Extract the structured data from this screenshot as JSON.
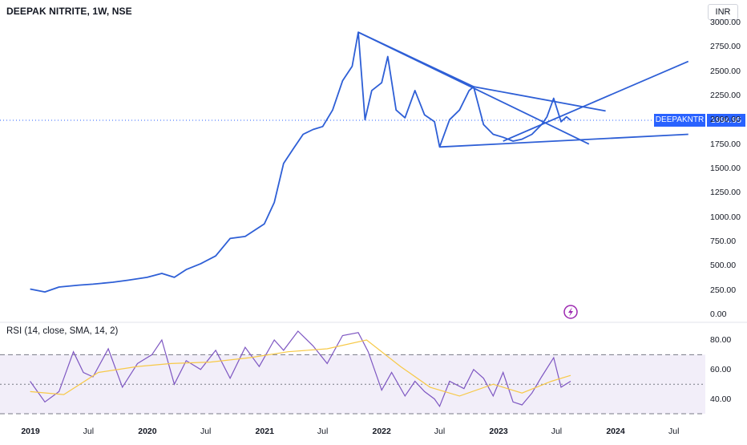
{
  "header": {
    "title": "DEEPAK NITRITE, 1W, NSE",
    "currency": "INR"
  },
  "price_tag": {
    "symbol": "DEEPAKNTR",
    "value": "1994.95"
  },
  "rsi_title": "RSI (14, close, SMA, 14, 2)",
  "colors": {
    "price_line": "#2e5fd6",
    "trendline": "#2e5fd6",
    "rsi_line": "#7e57c2",
    "rsi_ma": "#f7c948",
    "rsi_band": "#ede7f6",
    "tag": "#2962ff",
    "flash_icon": "#9c27b0"
  },
  "icons": [
    "flash-icon"
  ],
  "chart_data": [
    {
      "type": "line",
      "title": "DEEPAK NITRITE, 1W, NSE",
      "ylim": [
        0,
        3000
      ],
      "y_ticks": [
        "3000.00",
        "2750.00",
        "2500.00",
        "2250.00",
        "2000.00",
        "1750.00",
        "1500.00",
        "1250.00",
        "1000.00",
        "750.00",
        "500.00",
        "250.00",
        "0.00"
      ],
      "x_ticks": [
        "2019",
        "Jul",
        "2020",
        "Jul",
        "2021",
        "Jul",
        "2022",
        "Jul",
        "2023",
        "Jul",
        "2024",
        "Jul"
      ],
      "last_price": 1994.95,
      "grid": false,
      "series": [
        {
          "x": [
            "2018-12-31",
            "2019-02-15",
            "2019-03-31",
            "2019-06-01",
            "2019-07-15",
            "2019-09-15",
            "2019-11-01",
            "2019-12-31",
            "2020-02-15",
            "2020-03-25",
            "2020-05-01",
            "2020-06-15",
            "2020-08-01",
            "2020-09-15",
            "2020-11-01",
            "2020-12-31",
            "2021-01-31",
            "2021-03-01",
            "2021-03-31",
            "2021-05-01",
            "2021-06-01",
            "2021-07-01",
            "2021-08-01",
            "2021-09-01",
            "2021-10-01",
            "2021-10-20",
            "2021-11-10",
            "2021-12-01",
            "2022-01-01",
            "2022-01-20",
            "2022-02-15",
            "2022-03-15",
            "2022-04-15",
            "2022-05-15",
            "2022-06-15",
            "2022-07-01",
            "2022-08-01",
            "2022-09-01",
            "2022-10-01",
            "2022-10-15",
            "2022-11-15",
            "2022-12-15",
            "2023-01-15",
            "2023-02-15",
            "2023-03-15",
            "2023-04-15",
            "2023-05-15",
            "2023-06-01",
            "2023-06-22",
            "2023-07-15",
            "2023-08-01",
            "2023-08-14"
          ],
          "values": [
            260,
            230,
            280,
            300,
            310,
            330,
            350,
            380,
            420,
            380,
            460,
            520,
            600,
            780,
            800,
            930,
            1150,
            1550,
            1700,
            1850,
            1900,
            1930,
            2100,
            2400,
            2550,
            2900,
            2000,
            2300,
            2380,
            2650,
            2100,
            2020,
            2300,
            2050,
            1980,
            1720,
            2000,
            2100,
            2300,
            2340,
            1950,
            1850,
            1820,
            1780,
            1800,
            1850,
            1950,
            2030,
            2220,
            1980,
            2030,
            1994.95
          ]
        }
      ],
      "trendlines": [
        {
          "from": [
            "2021-10-20",
            2900
          ],
          "to": [
            "2023-10-10",
            1750
          ]
        },
        {
          "from": [
            "2021-10-20",
            2900
          ],
          "to": [
            "2022-10-15",
            2340
          ]
        },
        {
          "from": [
            "2022-10-15",
            2340
          ],
          "to": [
            "2023-12-01",
            2090
          ]
        },
        {
          "from": [
            "2022-07-01",
            1720
          ],
          "to": [
            "2024-08-15",
            1850
          ]
        },
        {
          "from": [
            "2023-01-15",
            1780
          ],
          "to": [
            "2024-08-15",
            2600
          ]
        }
      ]
    },
    {
      "type": "line",
      "title": "RSI (14, close, SMA, 14, 2)",
      "ylim": [
        30,
        90
      ],
      "y_ticks": [
        "80.00",
        "60.00",
        "40.00"
      ],
      "bands": {
        "upper": 70,
        "middle": 50,
        "lower": 30
      },
      "series": [
        {
          "name": "RSI",
          "x": [
            "2018-12-31",
            "2019-02-15",
            "2019-03-31",
            "2019-05-15",
            "2019-06-15",
            "2019-07-15",
            "2019-09-01",
            "2019-10-15",
            "2019-12-01",
            "2020-01-15",
            "2020-02-15",
            "2020-03-25",
            "2020-05-01",
            "2020-06-15",
            "2020-08-01",
            "2020-09-15",
            "2020-11-01",
            "2020-12-15",
            "2021-01-31",
            "2021-03-01",
            "2021-04-15",
            "2021-06-01",
            "2021-07-15",
            "2021-09-01",
            "2021-10-20",
            "2021-11-20",
            "2022-01-01",
            "2022-02-01",
            "2022-03-15",
            "2022-04-15",
            "2022-05-15",
            "2022-06-15",
            "2022-07-01",
            "2022-08-01",
            "2022-09-15",
            "2022-10-15",
            "2022-11-15",
            "2022-12-15",
            "2023-01-15",
            "2023-02-15",
            "2023-03-15",
            "2023-04-15",
            "2023-05-15",
            "2023-06-22",
            "2023-07-15",
            "2023-08-14"
          ],
          "values": [
            52,
            38,
            45,
            72,
            58,
            55,
            74,
            48,
            64,
            70,
            80,
            50,
            66,
            60,
            73,
            54,
            75,
            62,
            80,
            73,
            86,
            76,
            64,
            83,
            85,
            72,
            46,
            58,
            42,
            52,
            45,
            40,
            35,
            52,
            47,
            60,
            54,
            42,
            58,
            38,
            36,
            44,
            55,
            68,
            48,
            52
          ]
        },
        {
          "name": "RSI-based MA",
          "x": [
            "2018-12-31",
            "2019-04-15",
            "2019-08-01",
            "2019-12-01",
            "2020-03-15",
            "2020-07-15",
            "2020-11-15",
            "2021-03-15",
            "2021-07-15",
            "2021-11-15",
            "2022-03-01",
            "2022-06-01",
            "2022-09-01",
            "2022-12-15",
            "2023-03-15",
            "2023-06-15",
            "2023-08-14"
          ],
          "values": [
            45,
            43,
            58,
            62,
            64,
            65,
            68,
            72,
            74,
            80,
            62,
            48,
            42,
            50,
            44,
            52,
            56
          ]
        }
      ]
    }
  ]
}
